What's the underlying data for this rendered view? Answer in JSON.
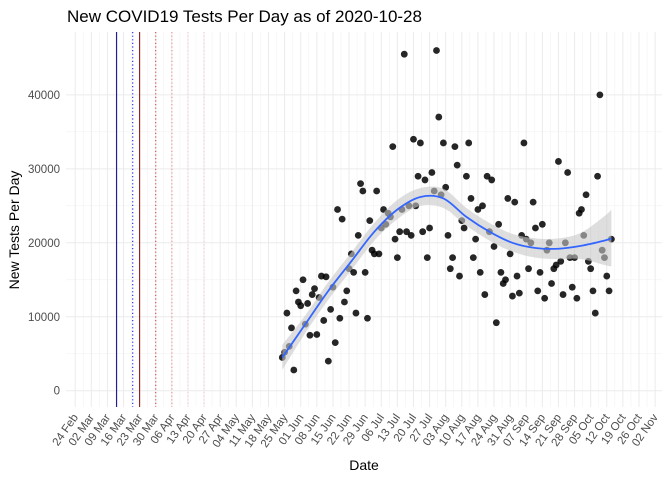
{
  "chart_data": {
    "type": "scatter",
    "title": "New COVID19 Tests Per Day as of 2020-10-28",
    "xlabel": "Date",
    "ylabel": "New Tests Per Day",
    "x_ticks": [
      "24 Feb",
      "02 Mar",
      "09 Mar",
      "16 Mar",
      "23 Mar",
      "30 Mar",
      "06 Apr",
      "13 Apr",
      "20 Apr",
      "27 Apr",
      "04 May",
      "11 May",
      "18 May",
      "25 May",
      "01 Jun",
      "08 Jun",
      "15 Jun",
      "22 Jun",
      "29 Jun",
      "06 Jul",
      "13 Jul",
      "20 Jul",
      "27 Jul",
      "03 Aug",
      "10 Aug",
      "17 Aug",
      "24 Aug",
      "31 Aug",
      "07 Sep",
      "14 Sep",
      "21 Sep",
      "28 Sep",
      "05 Oct",
      "12 Oct",
      "19 Oct",
      "26 Oct",
      "02 Nov"
    ],
    "x_tick_dates": [
      "2020-02-24",
      "2020-03-02",
      "2020-03-09",
      "2020-03-16",
      "2020-03-23",
      "2020-03-30",
      "2020-04-06",
      "2020-04-13",
      "2020-04-20",
      "2020-04-27",
      "2020-05-04",
      "2020-05-11",
      "2020-05-18",
      "2020-05-25",
      "2020-06-01",
      "2020-06-08",
      "2020-06-15",
      "2020-06-22",
      "2020-06-29",
      "2020-07-06",
      "2020-07-13",
      "2020-07-20",
      "2020-07-27",
      "2020-08-03",
      "2020-08-10",
      "2020-08-17",
      "2020-08-24",
      "2020-08-31",
      "2020-09-07",
      "2020-09-14",
      "2020-09-21",
      "2020-09-28",
      "2020-10-05",
      "2020-10-12",
      "2020-10-19",
      "2020-10-26",
      "2020-11-02"
    ],
    "y_ticks": [
      0,
      10000,
      20000,
      30000,
      40000
    ],
    "xlim": [
      "2020-02-20",
      "2020-11-05"
    ],
    "ylim": [
      -2200,
      48500
    ],
    "grid": true,
    "vlines": [
      {
        "date": "2020-03-13",
        "color": "#000080",
        "style": "solid"
      },
      {
        "date": "2020-03-20",
        "color": "#0000ff",
        "style": "dotted"
      },
      {
        "date": "2020-03-23",
        "color": "#8b0000",
        "style": "solid"
      },
      {
        "date": "2020-03-30",
        "color": "#cd3333",
        "style": "dotted"
      },
      {
        "date": "2020-04-06",
        "color": "#f08080",
        "style": "dotted"
      },
      {
        "date": "2020-04-13",
        "color": "#ffc0cb",
        "style": "dotted"
      },
      {
        "date": "2020-04-20",
        "color": "#ffc0cb",
        "style": "dotted"
      }
    ],
    "points": [
      {
        "x": "2020-05-24",
        "y": 4500
      },
      {
        "x": "2020-05-25",
        "y": 5200
      },
      {
        "x": "2020-05-26",
        "y": 10500
      },
      {
        "x": "2020-05-27",
        "y": 6000
      },
      {
        "x": "2020-05-28",
        "y": 8500
      },
      {
        "x": "2020-05-29",
        "y": 2800
      },
      {
        "x": "2020-05-30",
        "y": 13500
      },
      {
        "x": "2020-05-31",
        "y": 12000
      },
      {
        "x": "2020-06-01",
        "y": 11500
      },
      {
        "x": "2020-06-02",
        "y": 15000
      },
      {
        "x": "2020-06-03",
        "y": 9000
      },
      {
        "x": "2020-06-04",
        "y": 11800
      },
      {
        "x": "2020-06-05",
        "y": 7500
      },
      {
        "x": "2020-06-06",
        "y": 13000
      },
      {
        "x": "2020-06-07",
        "y": 13800
      },
      {
        "x": "2020-06-08",
        "y": 7600
      },
      {
        "x": "2020-06-09",
        "y": 12600
      },
      {
        "x": "2020-06-10",
        "y": 15500
      },
      {
        "x": "2020-06-11",
        "y": 9500
      },
      {
        "x": "2020-06-12",
        "y": 15400
      },
      {
        "x": "2020-06-13",
        "y": 4000
      },
      {
        "x": "2020-06-14",
        "y": 11000
      },
      {
        "x": "2020-06-15",
        "y": 14000
      },
      {
        "x": "2020-06-16",
        "y": 6500
      },
      {
        "x": "2020-06-17",
        "y": 24500
      },
      {
        "x": "2020-06-18",
        "y": 9800
      },
      {
        "x": "2020-06-19",
        "y": 23200
      },
      {
        "x": "2020-06-20",
        "y": 12000
      },
      {
        "x": "2020-06-21",
        "y": 13500
      },
      {
        "x": "2020-06-22",
        "y": 16500
      },
      {
        "x": "2020-06-23",
        "y": 18500
      },
      {
        "x": "2020-06-24",
        "y": 16000
      },
      {
        "x": "2020-06-25",
        "y": 10500
      },
      {
        "x": "2020-06-26",
        "y": 21000
      },
      {
        "x": "2020-06-27",
        "y": 28000
      },
      {
        "x": "2020-06-28",
        "y": 27000
      },
      {
        "x": "2020-06-29",
        "y": 16000
      },
      {
        "x": "2020-06-30",
        "y": 9800
      },
      {
        "x": "2020-07-01",
        "y": 23000
      },
      {
        "x": "2020-07-02",
        "y": 19000
      },
      {
        "x": "2020-07-03",
        "y": 18500
      },
      {
        "x": "2020-07-04",
        "y": 27000
      },
      {
        "x": "2020-07-05",
        "y": 18500
      },
      {
        "x": "2020-07-06",
        "y": 22000
      },
      {
        "x": "2020-07-07",
        "y": 24500
      },
      {
        "x": "2020-07-08",
        "y": 22500
      },
      {
        "x": "2020-07-09",
        "y": 24000
      },
      {
        "x": "2020-07-10",
        "y": 23500
      },
      {
        "x": "2020-07-11",
        "y": 33000
      },
      {
        "x": "2020-07-12",
        "y": 20500
      },
      {
        "x": "2020-07-13",
        "y": 18000
      },
      {
        "x": "2020-07-14",
        "y": 21500
      },
      {
        "x": "2020-07-15",
        "y": 24500
      },
      {
        "x": "2020-07-16",
        "y": 45500
      },
      {
        "x": "2020-07-17",
        "y": 21500
      },
      {
        "x": "2020-07-18",
        "y": 25000
      },
      {
        "x": "2020-07-19",
        "y": 21000
      },
      {
        "x": "2020-07-20",
        "y": 34000
      },
      {
        "x": "2020-07-21",
        "y": 25000
      },
      {
        "x": "2020-07-22",
        "y": 29000
      },
      {
        "x": "2020-07-23",
        "y": 33500
      },
      {
        "x": "2020-07-24",
        "y": 21500
      },
      {
        "x": "2020-07-25",
        "y": 28500
      },
      {
        "x": "2020-07-26",
        "y": 18000
      },
      {
        "x": "2020-07-27",
        "y": 22000
      },
      {
        "x": "2020-07-28",
        "y": 29500
      },
      {
        "x": "2020-07-29",
        "y": 27000
      },
      {
        "x": "2020-07-30",
        "y": 46000
      },
      {
        "x": "2020-07-31",
        "y": 37000
      },
      {
        "x": "2020-08-01",
        "y": 26500
      },
      {
        "x": "2020-08-02",
        "y": 33500
      },
      {
        "x": "2020-08-03",
        "y": 27500
      },
      {
        "x": "2020-08-04",
        "y": 21000
      },
      {
        "x": "2020-08-05",
        "y": 16500
      },
      {
        "x": "2020-08-06",
        "y": 18000
      },
      {
        "x": "2020-08-07",
        "y": 33000
      },
      {
        "x": "2020-08-08",
        "y": 30500
      },
      {
        "x": "2020-08-09",
        "y": 15500
      },
      {
        "x": "2020-08-10",
        "y": 23000
      },
      {
        "x": "2020-08-11",
        "y": 22000
      },
      {
        "x": "2020-08-12",
        "y": 29000
      },
      {
        "x": "2020-08-13",
        "y": 33500
      },
      {
        "x": "2020-08-14",
        "y": 26000
      },
      {
        "x": "2020-08-15",
        "y": 18000
      },
      {
        "x": "2020-08-16",
        "y": 20500
      },
      {
        "x": "2020-08-17",
        "y": 24500
      },
      {
        "x": "2020-08-18",
        "y": 16000
      },
      {
        "x": "2020-08-19",
        "y": 25000
      },
      {
        "x": "2020-08-20",
        "y": 13000
      },
      {
        "x": "2020-08-21",
        "y": 29000
      },
      {
        "x": "2020-08-22",
        "y": 21500
      },
      {
        "x": "2020-08-23",
        "y": 28500
      },
      {
        "x": "2020-08-24",
        "y": 19500
      },
      {
        "x": "2020-08-25",
        "y": 9200
      },
      {
        "x": "2020-08-26",
        "y": 22500
      },
      {
        "x": "2020-08-27",
        "y": 16000
      },
      {
        "x": "2020-08-28",
        "y": 14500
      },
      {
        "x": "2020-08-29",
        "y": 15000
      },
      {
        "x": "2020-08-30",
        "y": 26000
      },
      {
        "x": "2020-08-31",
        "y": 18500
      },
      {
        "x": "2020-09-01",
        "y": 12800
      },
      {
        "x": "2020-09-02",
        "y": 25500
      },
      {
        "x": "2020-09-03",
        "y": 15500
      },
      {
        "x": "2020-09-04",
        "y": 13200
      },
      {
        "x": "2020-09-05",
        "y": 21000
      },
      {
        "x": "2020-09-06",
        "y": 33500
      },
      {
        "x": "2020-09-07",
        "y": 20500
      },
      {
        "x": "2020-09-08",
        "y": 16500
      },
      {
        "x": "2020-09-09",
        "y": 20000
      },
      {
        "x": "2020-09-10",
        "y": 25500
      },
      {
        "x": "2020-09-11",
        "y": 22000
      },
      {
        "x": "2020-09-12",
        "y": 13500
      },
      {
        "x": "2020-09-13",
        "y": 16000
      },
      {
        "x": "2020-09-14",
        "y": 22500
      },
      {
        "x": "2020-09-15",
        "y": 12500
      },
      {
        "x": "2020-09-16",
        "y": 19000
      },
      {
        "x": "2020-09-17",
        "y": 20000
      },
      {
        "x": "2020-09-18",
        "y": 14500
      },
      {
        "x": "2020-09-19",
        "y": 16500
      },
      {
        "x": "2020-09-20",
        "y": 17000
      },
      {
        "x": "2020-09-21",
        "y": 31000
      },
      {
        "x": "2020-09-22",
        "y": 17500
      },
      {
        "x": "2020-09-23",
        "y": 13000
      },
      {
        "x": "2020-09-24",
        "y": 20000
      },
      {
        "x": "2020-09-25",
        "y": 29500
      },
      {
        "x": "2020-09-26",
        "y": 18000
      },
      {
        "x": "2020-09-27",
        "y": 14000
      },
      {
        "x": "2020-09-28",
        "y": 18000
      },
      {
        "x": "2020-09-29",
        "y": 12500
      },
      {
        "x": "2020-09-30",
        "y": 24000
      },
      {
        "x": "2020-10-01",
        "y": 24500
      },
      {
        "x": "2020-10-02",
        "y": 21000
      },
      {
        "x": "2020-10-03",
        "y": 26500
      },
      {
        "x": "2020-10-04",
        "y": 17500
      },
      {
        "x": "2020-10-05",
        "y": 16500
      },
      {
        "x": "2020-10-06",
        "y": 13500
      },
      {
        "x": "2020-10-07",
        "y": 10500
      },
      {
        "x": "2020-10-08",
        "y": 29000
      },
      {
        "x": "2020-10-09",
        "y": 40000
      },
      {
        "x": "2020-10-10",
        "y": 19000
      },
      {
        "x": "2020-10-11",
        "y": 18000
      },
      {
        "x": "2020-10-12",
        "y": 15500
      },
      {
        "x": "2020-10-13",
        "y": 13500
      },
      {
        "x": "2020-10-14",
        "y": 20500
      }
    ],
    "smooth": {
      "color": "#3366ff",
      "band_color": "#c8c8c8",
      "x": [
        "2020-05-24",
        "2020-06-03",
        "2020-06-13",
        "2020-06-23",
        "2020-07-03",
        "2020-07-13",
        "2020-07-23",
        "2020-08-02",
        "2020-08-12",
        "2020-08-22",
        "2020-09-01",
        "2020-09-11",
        "2020-09-21",
        "2020-10-01",
        "2020-10-11",
        "2020-10-14"
      ],
      "y": [
        4500,
        9000,
        13500,
        17500,
        21500,
        24500,
        26200,
        26000,
        23500,
        21500,
        20000,
        19300,
        19200,
        19600,
        20300,
        20600
      ],
      "lower": [
        2800,
        7800,
        12300,
        16300,
        20300,
        23200,
        25000,
        24700,
        22300,
        20300,
        18800,
        18000,
        17800,
        17800,
        17000,
        16800
      ],
      "upper": [
        6200,
        10200,
        14700,
        18700,
        22700,
        25800,
        27400,
        27300,
        24700,
        22700,
        21200,
        20600,
        20600,
        21400,
        23600,
        24500
      ]
    }
  }
}
